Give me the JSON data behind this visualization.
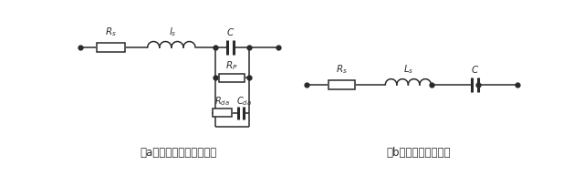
{
  "fig_width": 6.4,
  "fig_height": 2.05,
  "dpi": 100,
  "bg_color": "#ffffff",
  "line_color": "#2a2a2a",
  "line_width": 1.1,
  "caption_a": "(a)）电容器实际等效电路",
  "caption_b": "(b)）电容器简化模型",
  "caption_a_full": "(ａ）电容器实际等效电路",
  "caption_b_full": "(ｂ）电容器简化模型",
  "label_Rs_a": "$R_s$",
  "label_Ls_a": "$l_s$",
  "label_C_a": "$C$",
  "label_Rp": "$R_P$",
  "label_Rda": "$R_{da}$",
  "label_Cda": "$C_{da}$",
  "label_Rs_b": "$R_s$",
  "label_Ls_b": "$L_s$",
  "label_C_b": "$C$",
  "font_size_label": 7.5,
  "font_size_caption": 8.5
}
